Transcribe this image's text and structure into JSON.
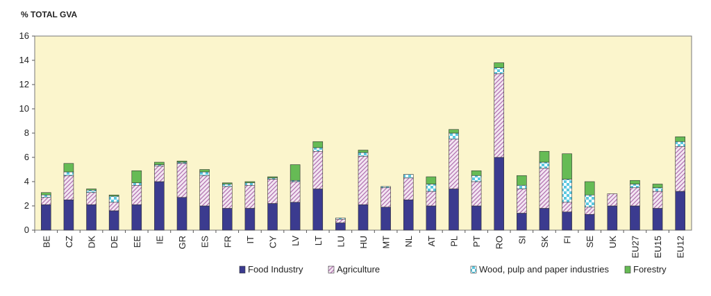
{
  "chart_data": {
    "type": "bar",
    "stacked": true,
    "title": "",
    "xlabel": "",
    "ylabel": "% TOTAL GVA",
    "ylim": [
      0,
      16
    ],
    "yticks": [
      0,
      2,
      4,
      6,
      8,
      10,
      12,
      14,
      16
    ],
    "grid": false,
    "legend_position": "bottom",
    "categories": [
      "BE",
      "CZ",
      "DK",
      "DE",
      "EE",
      "IE",
      "GR",
      "ES",
      "FR",
      "IT",
      "CY",
      "LV",
      "LT",
      "LU",
      "HU",
      "MT",
      "NL",
      "AT",
      "PL",
      "PT",
      "RO",
      "SI",
      "SK",
      "FI",
      "SE",
      "UK",
      "EU27",
      "EU15",
      "EU12"
    ],
    "series": [
      {
        "name": "Food Industry",
        "color": "#3b3b8f",
        "pattern": "solid",
        "values": [
          2.1,
          2.5,
          2.1,
          1.6,
          2.1,
          4.0,
          2.7,
          2.0,
          1.8,
          1.8,
          2.2,
          2.3,
          3.4,
          0.6,
          2.1,
          1.9,
          2.5,
          2.0,
          3.4,
          2.0,
          6.0,
          1.4,
          1.8,
          1.5,
          1.3,
          2.0,
          2.0,
          1.8,
          3.2
        ]
      },
      {
        "name": "Agriculture",
        "color": "#c9a3c9",
        "pattern": "hatch",
        "values": [
          0.6,
          2.0,
          1.0,
          0.7,
          1.6,
          1.3,
          2.8,
          2.5,
          1.8,
          1.9,
          2.0,
          1.7,
          3.1,
          0.3,
          4.0,
          1.6,
          1.8,
          1.2,
          4.1,
          2.0,
          6.9,
          2.0,
          3.3,
          0.8,
          0.6,
          1.0,
          1.5,
          1.4,
          3.7
        ]
      },
      {
        "name": "Wood, pulp and paper industries",
        "color": "#7fd6e6",
        "pattern": "check",
        "values": [
          0.2,
          0.3,
          0.2,
          0.5,
          0.2,
          0.1,
          0.1,
          0.3,
          0.2,
          0.2,
          0.1,
          0.1,
          0.3,
          0.1,
          0.3,
          0.1,
          0.3,
          0.6,
          0.5,
          0.5,
          0.5,
          0.3,
          0.5,
          1.9,
          1.0,
          0.0,
          0.3,
          0.3,
          0.4
        ]
      },
      {
        "name": "Forestry",
        "color": "#66bb55",
        "pattern": "solid",
        "values": [
          0.2,
          0.7,
          0.1,
          0.1,
          1.0,
          0.2,
          0.1,
          0.2,
          0.1,
          0.1,
          0.1,
          1.3,
          0.5,
          0.0,
          0.2,
          0.0,
          0.0,
          0.6,
          0.3,
          0.4,
          0.4,
          0.8,
          0.9,
          2.1,
          1.1,
          0.0,
          0.3,
          0.3,
          0.4
        ]
      }
    ]
  }
}
